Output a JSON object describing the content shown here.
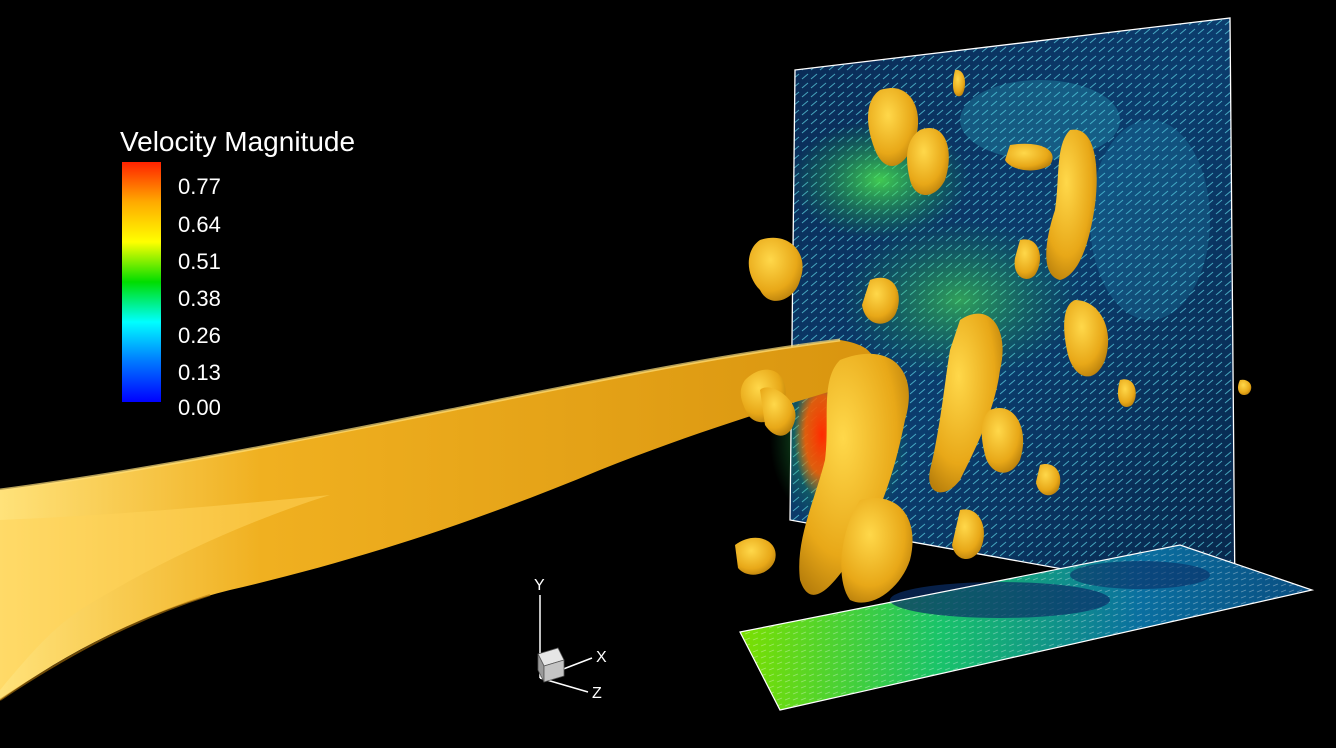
{
  "legend": {
    "title": "Velocity Magnitude",
    "ticks": [
      "0.77",
      "0.64",
      "0.51",
      "0.38",
      "0.26",
      "0.13",
      "0.00"
    ],
    "colors": [
      "#ff2200",
      "#ffaa00",
      "#ffff00",
      "#00dd00",
      "#00ffff",
      "#0077ff",
      "#0000ff"
    ]
  },
  "axes": {
    "y_label": "Y",
    "x_label": "X",
    "z_label": "Z"
  },
  "scene": {
    "isosurface_color": "#f0b020",
    "background_color": "#000000"
  }
}
